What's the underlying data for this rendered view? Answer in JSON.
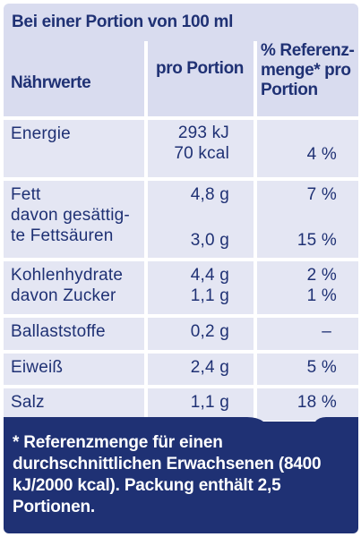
{
  "header": {
    "title": "Bei einer Portion von 100 ml"
  },
  "columns": {
    "name": "Nährwerte",
    "portion": "pro Portion",
    "reference": "% Referenz­menge* pro Portion"
  },
  "rows": [
    {
      "name": "Energie",
      "portion": "293 kJ\n70 kcal",
      "ref": "4 %"
    },
    {
      "name": "Fett",
      "portion": "4,8 g",
      "ref": "7 %"
    },
    {
      "name": "davon gesättig-\nte Fettsäuren",
      "portion": "3,0 g",
      "ref": "15 %"
    },
    {
      "name": "Kohlenhydrate",
      "portion": "4,4 g",
      "ref": "2 %"
    },
    {
      "name": "davon Zucker",
      "portion": "1,1 g",
      "ref": "1 %"
    },
    {
      "name": "Ballaststoffe",
      "portion": "0,2 g",
      "ref": "–"
    },
    {
      "name": "Eiweiß",
      "portion": "2,4 g",
      "ref": "5 %"
    },
    {
      "name": "Salz",
      "portion": "1,1 g",
      "ref": "18 %"
    }
  ],
  "footer": {
    "note": "* Referenzmenge für einen durchschnittlichen Erwach­senen (8400 kJ/2000 kcal). Packung enthält 2,5 Portionen."
  },
  "colors": {
    "navy": "#1f3174",
    "header_bg": "#d9dcef",
    "row_bg": "#e4e6f3"
  }
}
